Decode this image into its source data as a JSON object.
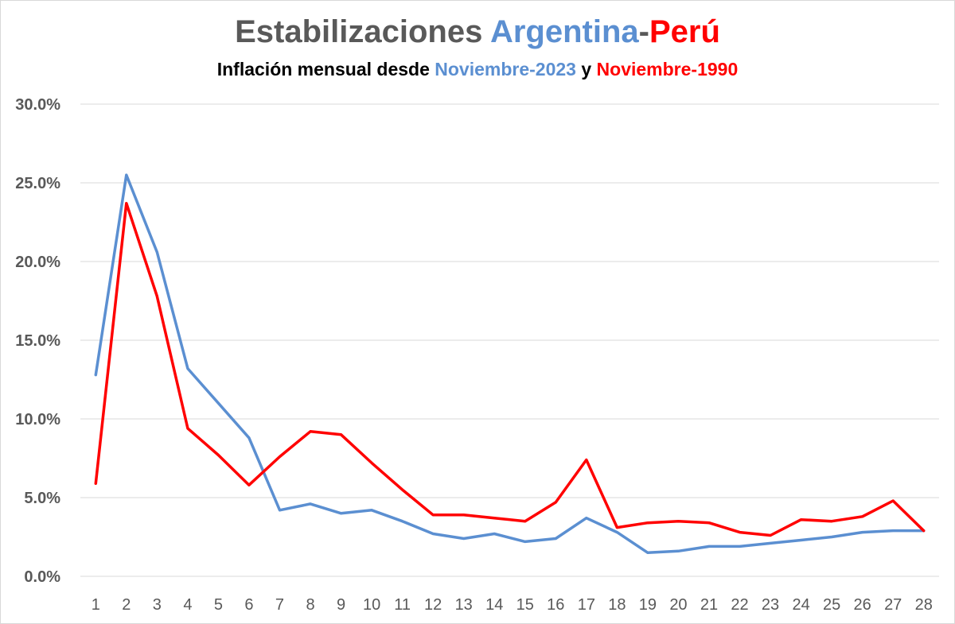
{
  "chart_data": {
    "type": "line",
    "title": {
      "prefix": "Estabilizaciones",
      "country_a": "Argentina",
      "separator": "-",
      "country_b": "Perú"
    },
    "subtitle": {
      "prefix": "Inflación mensual desde",
      "period_a": "Noviembre-2023",
      "connector": "y",
      "period_b": "Noviembre-1990"
    },
    "colors": {
      "title_gray": "#595959",
      "argentina": "#5b8fd1",
      "peru": "#ff0000",
      "subtitle_black": "#000000",
      "grid": "#d9d9d9",
      "axis_text": "#595959"
    },
    "x": [
      1,
      2,
      3,
      4,
      5,
      6,
      7,
      8,
      9,
      10,
      11,
      12,
      13,
      14,
      15,
      16,
      17,
      18,
      19,
      20,
      21,
      22,
      23,
      24,
      25,
      26,
      27,
      28
    ],
    "ylim": [
      0,
      30
    ],
    "yticks": [
      0,
      5,
      10,
      15,
      20,
      25,
      30
    ],
    "ytick_labels": [
      "0.0%",
      "5.0%",
      "10.0%",
      "15.0%",
      "20.0%",
      "25.0%",
      "30.0%"
    ],
    "grid": true,
    "series": [
      {
        "name": "Argentina",
        "color": "#5b8fd1",
        "values": [
          12.8,
          25.5,
          20.6,
          13.2,
          11.0,
          8.8,
          4.2,
          4.6,
          4.0,
          4.2,
          3.5,
          2.7,
          2.4,
          2.7,
          2.2,
          2.4,
          3.7,
          2.8,
          1.5,
          1.6,
          1.9,
          1.9,
          2.1,
          2.3,
          2.5,
          2.8,
          2.9,
          2.9
        ]
      },
      {
        "name": "Perú",
        "color": "#ff0000",
        "values": [
          5.9,
          23.7,
          17.8,
          9.4,
          7.7,
          5.8,
          7.6,
          9.2,
          9.0,
          7.2,
          5.5,
          3.9,
          3.9,
          3.7,
          3.5,
          4.7,
          7.4,
          3.1,
          3.4,
          3.5,
          3.4,
          2.8,
          2.6,
          3.6,
          3.5,
          3.8,
          4.8,
          2.9
        ]
      }
    ]
  }
}
